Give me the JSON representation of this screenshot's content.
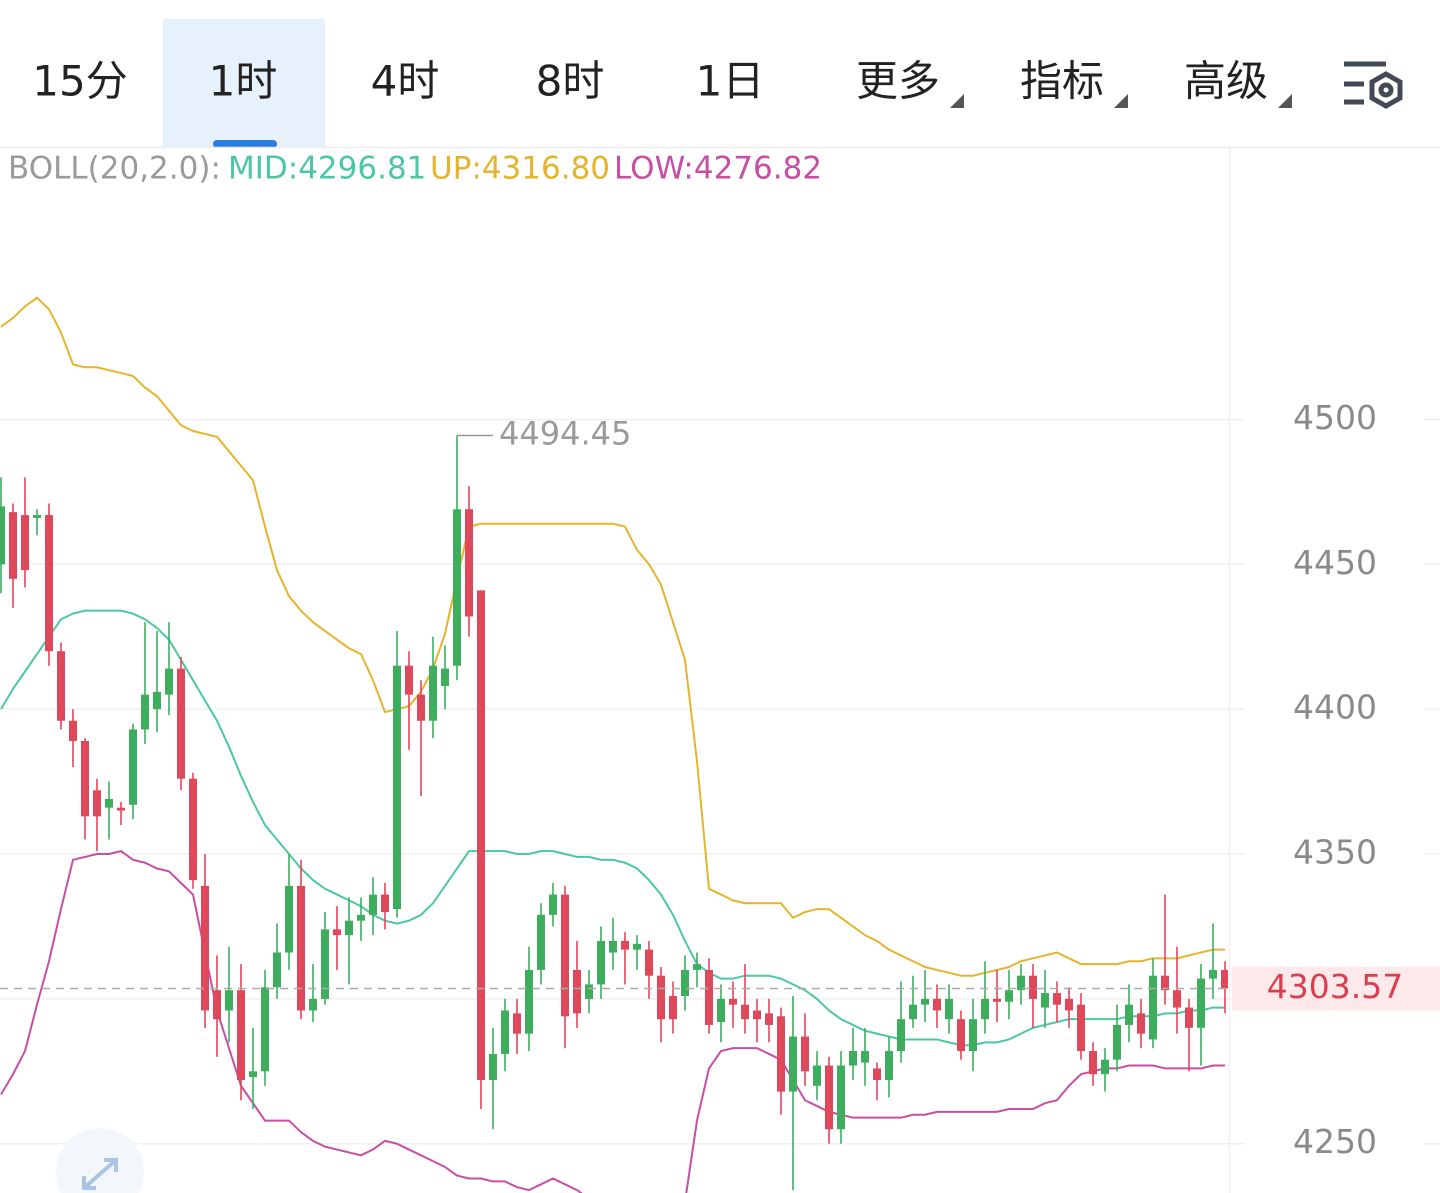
{
  "tabs": [
    "15分",
    "1时",
    "4时",
    "8时",
    "1日",
    "更多",
    "指标",
    "高级"
  ],
  "active_tab": 1,
  "dropdown_tabs": [
    5,
    6,
    7
  ],
  "indicator_legend": {
    "name": "BOLL(20,2.0):",
    "mid": "MID:4296.81",
    "up": "UP:4316.80",
    "low": "LOW:4276.82"
  },
  "chart_data": {
    "type": "candlestick",
    "ylim": [
      4233,
      4593
    ],
    "yticks": [
      4250,
      4300,
      4350,
      4400,
      4450,
      4500
    ],
    "grid": true,
    "up_color": "#3dae5e",
    "down_color": "#e0475a",
    "open": [
      4450,
      4468,
      4467,
      4466,
      4467,
      4420,
      4396,
      4389,
      4372,
      4366,
      4366,
      4367,
      4393,
      4400,
      4405,
      4414,
      4376,
      4339,
      4303,
      4296,
      4303,
      4273,
      4275,
      4304,
      4316,
      4339,
      4296,
      4300,
      4324,
      4322,
      4327,
      4329,
      4336,
      4331,
      4415,
      4405,
      4396,
      4408,
      4415,
      4469,
      4441,
      4272,
      4281,
      4295,
      4288,
      4310,
      4329,
      4336,
      4310,
      4300,
      4305,
      4316,
      4320,
      4317,
      4317,
      4308,
      4301,
      4301,
      4310,
      4310,
      4292,
      4300,
      4298,
      4296,
      4295,
      4294,
      4268,
      4287,
      4270,
      4277,
      4255,
      4277,
      4278,
      4276,
      4272,
      4282,
      4293,
      4298,
      4300,
      4293,
      4293,
      4282,
      4293,
      4300,
      4299,
      4303,
      4308,
      4297,
      4302,
      4300,
      4298,
      4282,
      4274,
      4279,
      4291,
      4295,
      4286,
      4308,
      4303,
      4297,
      4290,
      4307,
      4310
    ],
    "high": [
      4480,
      4471,
      4480,
      4469,
      4471,
      4423,
      4400,
      4390,
      4376,
      4375,
      4368,
      4395,
      4430,
      4427,
      4430,
      4418,
      4378,
      4350,
      4315,
      4318,
      4312,
      4290,
      4310,
      4326,
      4350,
      4348,
      4312,
      4330,
      4332,
      4335,
      4335,
      4342,
      4340,
      4427,
      4420,
      4410,
      4425,
      4422,
      4494.45,
      4477,
      4441,
      4290,
      4300,
      4300,
      4318,
      4333,
      4340,
      4339,
      4320,
      4310,
      4325,
      4328,
      4323,
      4322,
      4320,
      4311,
      4306,
      4315,
      4316,
      4314,
      4305,
      4306,
      4312,
      4300,
      4300,
      4297,
      4301,
      4295,
      4282,
      4280,
      4282,
      4290,
      4290,
      4278,
      4287,
      4306,
      4308,
      4310,
      4305,
      4305,
      4296,
      4300,
      4313,
      4310,
      4310,
      4312,
      4312,
      4310,
      4306,
      4304,
      4302,
      4285,
      4283,
      4298,
      4305,
      4300,
      4314,
      4336,
      4318,
      4300,
      4312,
      4326,
      4313
    ],
    "low": [
      4440,
      4435,
      4442,
      4460,
      4415,
      4393,
      4380,
      4355,
      4351,
      4355,
      4360,
      4362,
      4388,
      4392,
      4398,
      4372,
      4338,
      4290,
      4280,
      4285,
      4265,
      4262,
      4270,
      4300,
      4310,
      4293,
      4292,
      4298,
      4310,
      4305,
      4320,
      4322,
      4324,
      4328,
      4386,
      4370,
      4390,
      4400,
      4410,
      4425,
      4262,
      4255,
      4275,
      4281,
      4282,
      4305,
      4325,
      4283,
      4290,
      4295,
      4300,
      4310,
      4305,
      4310,
      4300,
      4285,
      4288,
      4296,
      4304,
      4288,
      4285,
      4290,
      4288,
      4285,
      4285,
      4260,
      4234,
      4270,
      4265,
      4250,
      4250,
      4272,
      4270,
      4265,
      4266,
      4278,
      4290,
      4292,
      4290,
      4288,
      4279,
      4275,
      4288,
      4292,
      4293,
      4298,
      4290,
      4290,
      4292,
      4290,
      4279,
      4270,
      4268,
      4275,
      4285,
      4283,
      4283,
      4298,
      4288,
      4275,
      4277,
      4300,
      4295
    ],
    "close": [
      4470,
      4445,
      4448,
      4467,
      4420,
      4396,
      4389,
      4363,
      4363,
      4369,
      4365,
      4393,
      4405,
      4406,
      4414,
      4376,
      4341,
      4296,
      4293,
      4303,
      4272,
      4275,
      4304,
      4316,
      4339,
      4296,
      4300,
      4324,
      4322,
      4327,
      4329,
      4336,
      4330,
      4415,
      4405,
      4396,
      4415,
      4414,
      4469,
      4432,
      4272,
      4281,
      4296,
      4288,
      4310,
      4329,
      4336,
      4294,
      4295,
      4305,
      4320,
      4320,
      4317,
      4319,
      4308,
      4293,
      4293,
      4310,
      4312,
      4291,
      4300,
      4298,
      4293,
      4293,
      4291,
      4268,
      4287,
      4275,
      4277,
      4255,
      4277,
      4282,
      4282,
      4272,
      4282,
      4293,
      4298,
      4300,
      4296,
      4300,
      4282,
      4293,
      4300,
      4299,
      4303,
      4308,
      4300,
      4302,
      4298,
      4296,
      4282,
      4274,
      4279,
      4291,
      4298,
      4288,
      4308,
      4303,
      4297,
      4290,
      4307,
      4310,
      4303.57
    ],
    "bands": [
      {
        "color": "#e6b42c",
        "values": [
          4532,
          4535,
          4539,
          4542,
          4538,
          4530,
          4519,
          4518,
          4518,
          4517,
          4516,
          4515,
          4511,
          4508,
          4503,
          4498,
          4496,
          4495,
          4494,
          4489,
          4484,
          4479,
          4463,
          4448,
          4439,
          4434,
          4430,
          4427,
          4424,
          4421,
          4419,
          4410,
          4399,
          4400,
          4401,
          4406,
          4414,
          4426,
          4445,
          4463,
          4464,
          4464,
          4464,
          4464,
          4464,
          4464,
          4464,
          4464,
          4464,
          4464,
          4464,
          4464,
          4463,
          4455,
          4450,
          4443,
          4430,
          4417,
          4382,
          4338,
          4336,
          4334,
          4333,
          4333,
          4333,
          4333,
          4328,
          4330,
          4331,
          4331,
          4328,
          4325,
          4322,
          4320,
          4317,
          4315,
          4313,
          4311,
          4310,
          4309,
          4308,
          4308,
          4309,
          4310,
          4311,
          4313,
          4314,
          4315,
          4316,
          4314,
          4312,
          4312,
          4312,
          4312,
          4313,
          4313,
          4314,
          4314,
          4314,
          4315,
          4316,
          4317,
          4317
        ]
      },
      {
        "color": "#4cc7a6",
        "values": [
          4400,
          4407,
          4413,
          4419,
          4425,
          4431,
          4433,
          4434,
          4434,
          4434,
          4434,
          4433,
          4431,
          4428,
          4424,
          4417,
          4410,
          4403,
          4396,
          4387,
          4377,
          4368,
          4360,
          4355,
          4350,
          4345,
          4341,
          4338,
          4336,
          4334,
          4332,
          4329,
          4327,
          4326,
          4327,
          4329,
          4333,
          4339,
          4345,
          4351,
          4351,
          4351,
          4351,
          4350,
          4350,
          4351,
          4351,
          4350,
          4349,
          4349,
          4348,
          4348,
          4347,
          4345,
          4341,
          4336,
          4329,
          4320,
          4312,
          4309,
          4307,
          4307,
          4308,
          4308,
          4308,
          4307,
          4305,
          4303,
          4300,
          4296,
          4293,
          4291,
          4289,
          4288,
          4287,
          4286,
          4286,
          4286,
          4286,
          4285,
          4284,
          4284,
          4285,
          4285,
          4286,
          4288,
          4290,
          4291,
          4292,
          4293,
          4293,
          4293,
          4293,
          4293,
          4294,
          4294,
          4294,
          4295,
          4295,
          4296,
          4296,
          4297,
          4297
        ]
      },
      {
        "color": "#c74ea4",
        "values": [
          4267,
          4274,
          4282,
          4298,
          4313,
          4331,
          4348,
          4349,
          4350,
          4350,
          4351,
          4348,
          4347,
          4345,
          4344,
          4340,
          4336,
          4316,
          4296,
          4283,
          4270,
          4264,
          4258,
          4258,
          4258,
          4254,
          4251,
          4249,
          4248,
          4247,
          4246,
          4248,
          4251,
          4250,
          4248,
          4246,
          4244,
          4242,
          4239,
          4238,
          4238,
          4237,
          4237,
          4235,
          4234,
          4236,
          4238,
          4236,
          4234,
          4231,
          4229,
          4228,
          4228,
          4228,
          4228,
          4229,
          4229,
          4230,
          4258,
          4276,
          4282,
          4283,
          4283,
          4283,
          4281,
          4279,
          4272,
          4265,
          4263,
          4261,
          4260,
          4259,
          4259,
          4259,
          4259,
          4259,
          4260,
          4260,
          4261,
          4261,
          4261,
          4261,
          4261,
          4261,
          4262,
          4262,
          4262,
          4264,
          4265,
          4270,
          4274,
          4275,
          4276,
          4276,
          4277,
          4277,
          4277,
          4276,
          4276,
          4276,
          4276,
          4277,
          4277
        ]
      }
    ],
    "max_label": 4494.45,
    "last_price": 4303.57
  }
}
